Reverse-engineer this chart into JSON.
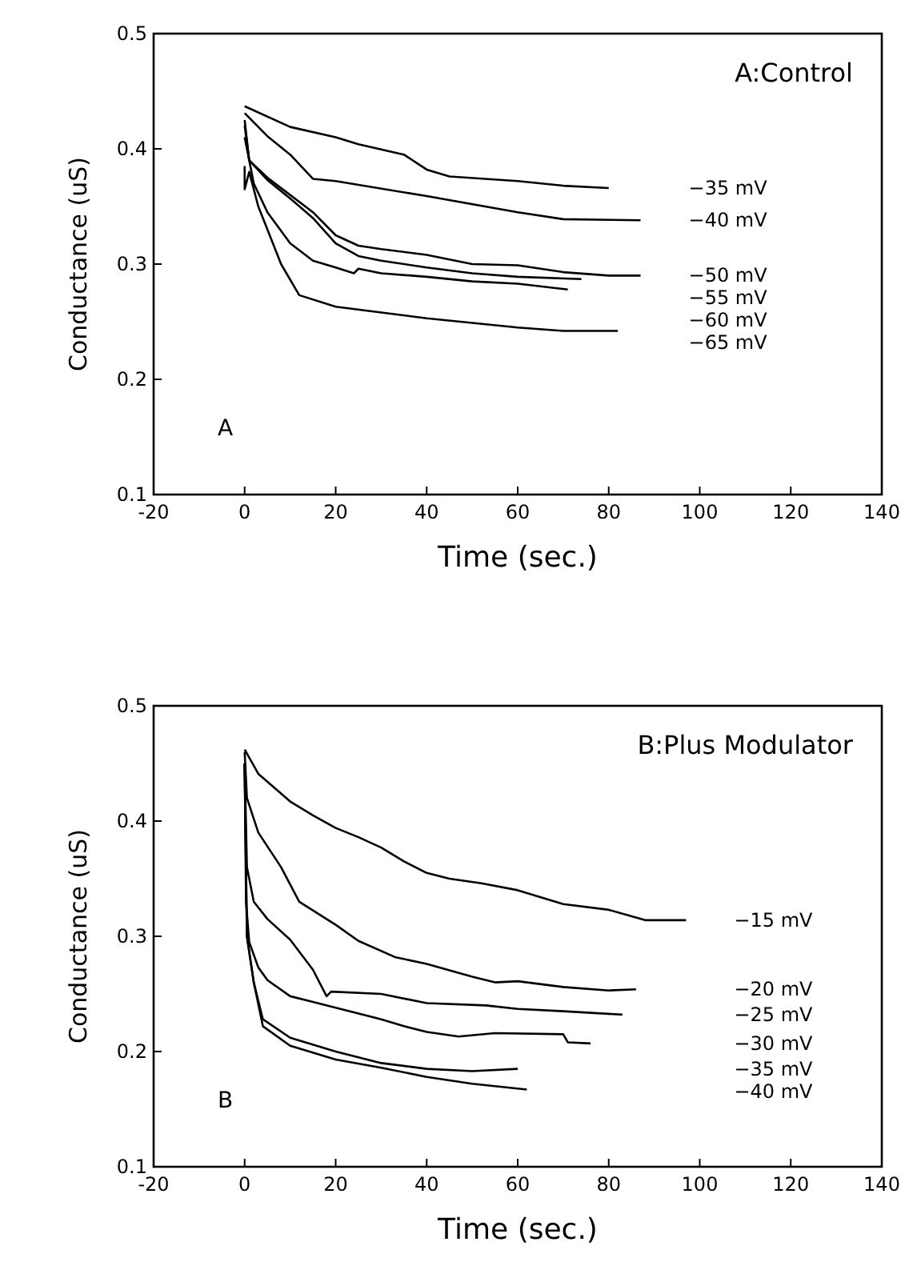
{
  "chart_data": [
    {
      "type": "line",
      "title": "A:Control",
      "xlabel": "Time (sec.)",
      "ylabel": "Conductance (uS)",
      "annotations": [
        "A"
      ],
      "xlim": [
        -20,
        140
      ],
      "xticks": [
        -20,
        0,
        20,
        40,
        60,
        80,
        100,
        120,
        140
      ],
      "ylim": [
        0.1,
        0.5
      ],
      "yticks": [
        0.1,
        0.2,
        0.3,
        0.4,
        0.5
      ],
      "grid": false,
      "legend": false,
      "marker": "none",
      "line_style": "solid",
      "series": [
        {
          "name": "−35 mV",
          "color": "#000000",
          "x": [
            0,
            10,
            20,
            25,
            35,
            40,
            45,
            60,
            70,
            80
          ],
          "values": [
            0.437,
            0.419,
            0.41,
            0.404,
            0.395,
            0.382,
            0.376,
            0.372,
            0.368,
            0.366
          ]
        },
        {
          "name": "−40 mV",
          "color": "#000000",
          "x": [
            0,
            5,
            10,
            15,
            20,
            40,
            60,
            70,
            87
          ],
          "values": [
            0.431,
            0.411,
            0.395,
            0.374,
            0.372,
            0.359,
            0.345,
            0.339,
            0.338
          ]
        },
        {
          "name": "−50 mV",
          "color": "#000000",
          "x": [
            0,
            1,
            5,
            10,
            15,
            20,
            25,
            30,
            40,
            50,
            60,
            70,
            80,
            87
          ],
          "values": [
            0.425,
            0.39,
            0.375,
            0.36,
            0.345,
            0.325,
            0.316,
            0.313,
            0.308,
            0.3,
            0.299,
            0.293,
            0.29,
            0.29
          ]
        },
        {
          "name": "−55 mV",
          "color": "#000000",
          "x": [
            0,
            1,
            5,
            10,
            15,
            20,
            25,
            30,
            40,
            50,
            60,
            74
          ],
          "values": [
            0.42,
            0.39,
            0.373,
            0.357,
            0.34,
            0.318,
            0.307,
            0.303,
            0.297,
            0.292,
            0.289,
            0.287
          ]
        },
        {
          "name": "−60 mV",
          "color": "#000000",
          "x": [
            0,
            2,
            5,
            10,
            15,
            20,
            24,
            25,
            30,
            40,
            50,
            60,
            71
          ],
          "values": [
            0.41,
            0.37,
            0.345,
            0.318,
            0.303,
            0.297,
            0.292,
            0.296,
            0.292,
            0.289,
            0.285,
            0.283,
            0.278
          ]
        },
        {
          "name": "−65 mV",
          "color": "#000000",
          "x": [
            0,
            0,
            1,
            3,
            5,
            8,
            12,
            20,
            30,
            40,
            50,
            60,
            70,
            82
          ],
          "values": [
            0.385,
            0.365,
            0.38,
            0.35,
            0.33,
            0.3,
            0.273,
            0.263,
            0.258,
            0.253,
            0.249,
            0.245,
            0.242,
            0.242
          ]
        }
      ]
    },
    {
      "type": "line",
      "title": "B:Plus Modulator",
      "xlabel": "Time (sec.)",
      "ylabel": "Conductance (uS)",
      "annotations": [
        "B"
      ],
      "xlim": [
        -20,
        140
      ],
      "xticks": [
        -20,
        0,
        20,
        40,
        60,
        80,
        100,
        120,
        140
      ],
      "ylim": [
        0.1,
        0.5
      ],
      "yticks": [
        0.1,
        0.2,
        0.3,
        0.4,
        0.5
      ],
      "grid": false,
      "legend": false,
      "marker": "none",
      "line_style": "solid",
      "series": [
        {
          "name": "−15 mV",
          "color": "#000000",
          "x": [
            0,
            3,
            10,
            15,
            20,
            25,
            30,
            35,
            40,
            45,
            52,
            60,
            70,
            80,
            88,
            97
          ],
          "values": [
            0.462,
            0.441,
            0.417,
            0.405,
            0.394,
            0.386,
            0.377,
            0.365,
            0.355,
            0.35,
            0.346,
            0.34,
            0.328,
            0.323,
            0.314,
            0.314
          ]
        },
        {
          "name": "−20 mV",
          "color": "#000000",
          "x": [
            0,
            0.5,
            3,
            8,
            12,
            20,
            25,
            33,
            40,
            50,
            55,
            60,
            70,
            80,
            86
          ],
          "values": [
            0.46,
            0.42,
            0.39,
            0.36,
            0.33,
            0.31,
            0.296,
            0.282,
            0.276,
            0.265,
            0.26,
            0.261,
            0.256,
            0.253,
            0.254
          ]
        },
        {
          "name": "−25 mV",
          "color": "#000000",
          "x": [
            0,
            0.5,
            2,
            5,
            10,
            15,
            18,
            19,
            30,
            40,
            53,
            60,
            70,
            83
          ],
          "values": [
            0.45,
            0.36,
            0.33,
            0.315,
            0.297,
            0.271,
            0.248,
            0.252,
            0.25,
            0.242,
            0.24,
            0.237,
            0.235,
            0.232
          ]
        },
        {
          "name": "−30 mV",
          "color": "#000000",
          "x": [
            0,
            0.3,
            1,
            3,
            5,
            10,
            15,
            20,
            30,
            35,
            40,
            47,
            55,
            70,
            71,
            76
          ],
          "values": [
            0.45,
            0.33,
            0.295,
            0.273,
            0.262,
            0.248,
            0.243,
            0.238,
            0.228,
            0.222,
            0.217,
            0.213,
            0.216,
            0.215,
            0.208,
            0.207
          ]
        },
        {
          "name": "−35 mV",
          "color": "#000000",
          "x": [
            0,
            0.5,
            2,
            4,
            10,
            20,
            30,
            40,
            50,
            60
          ],
          "values": [
            0.45,
            0.3,
            0.26,
            0.228,
            0.212,
            0.2,
            0.19,
            0.185,
            0.183,
            0.185
          ]
        },
        {
          "name": "−40 mV",
          "color": "#000000",
          "x": [
            0,
            0.5,
            2,
            4,
            10,
            20,
            30,
            40,
            50,
            62
          ],
          "values": [
            0.45,
            0.3,
            0.26,
            0.222,
            0.205,
            0.193,
            0.186,
            0.178,
            0.172,
            0.167
          ]
        }
      ]
    }
  ]
}
